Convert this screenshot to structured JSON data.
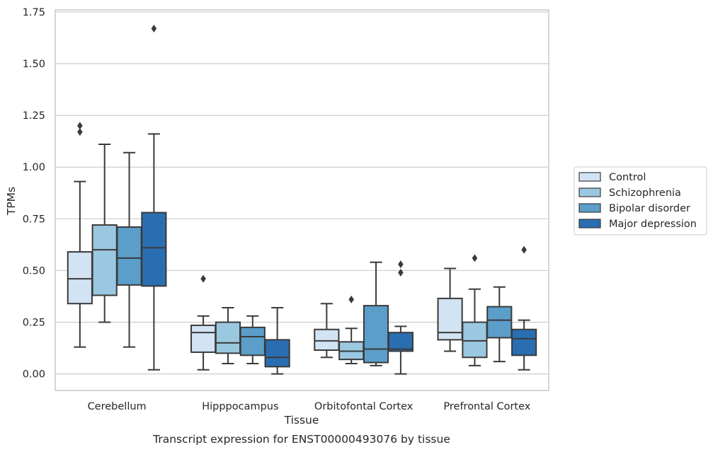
{
  "chart_data": {
    "type": "box",
    "title": "",
    "xlabel": "Tissue",
    "ylabel": "TPMs",
    "caption": "Transcript expression for ENST00000493076 by tissue",
    "categories": [
      "Cerebellum",
      "Hipppocampus",
      "Orbitofontal Cortex",
      "Prefrontal Cortex"
    ],
    "ylim": [
      -0.08,
      1.76
    ],
    "yticks": [
      0.0,
      0.25,
      0.5,
      0.75,
      1.0,
      1.25,
      1.5,
      1.75
    ],
    "ytick_labels": [
      "0.00",
      "0.25",
      "0.50",
      "0.75",
      "1.00",
      "1.25",
      "1.50",
      "1.75"
    ],
    "grid": true,
    "legend_position": "right",
    "series": [
      {
        "name": "Control",
        "color": "#d2e3f3",
        "boxes": [
          {
            "whisker_low": 0.13,
            "q1": 0.34,
            "median": 0.46,
            "q3": 0.59,
            "whisker_high": 0.93,
            "outliers": [
              1.17,
              1.2
            ]
          },
          {
            "whisker_low": 0.02,
            "q1": 0.105,
            "median": 0.2,
            "q3": 0.235,
            "whisker_high": 0.28,
            "outliers": [
              0.46
            ]
          },
          {
            "whisker_low": 0.08,
            "q1": 0.115,
            "median": 0.16,
            "q3": 0.215,
            "whisker_high": 0.34,
            "outliers": []
          },
          {
            "whisker_low": 0.11,
            "q1": 0.165,
            "median": 0.2,
            "q3": 0.365,
            "whisker_high": 0.51,
            "outliers": []
          }
        ]
      },
      {
        "name": "Schizophrenia",
        "color": "#9ac8e0",
        "boxes": [
          {
            "whisker_low": 0.25,
            "q1": 0.38,
            "median": 0.6,
            "q3": 0.72,
            "whisker_high": 1.11,
            "outliers": []
          },
          {
            "whisker_low": 0.05,
            "q1": 0.1,
            "median": 0.15,
            "q3": 0.25,
            "whisker_high": 0.32,
            "outliers": []
          },
          {
            "whisker_low": 0.05,
            "q1": 0.07,
            "median": 0.11,
            "q3": 0.155,
            "whisker_high": 0.22,
            "outliers": [
              0.36
            ]
          },
          {
            "whisker_low": 0.04,
            "q1": 0.08,
            "median": 0.16,
            "q3": 0.25,
            "whisker_high": 0.41,
            "outliers": [
              0.56
            ]
          }
        ]
      },
      {
        "name": "Bipolar disorder",
        "color": "#5a9ec9",
        "boxes": [
          {
            "whisker_low": 0.13,
            "q1": 0.43,
            "median": 0.56,
            "q3": 0.71,
            "whisker_high": 1.07,
            "outliers": []
          },
          {
            "whisker_low": 0.05,
            "q1": 0.09,
            "median": 0.18,
            "q3": 0.225,
            "whisker_high": 0.28,
            "outliers": []
          },
          {
            "whisker_low": 0.04,
            "q1": 0.055,
            "median": 0.12,
            "q3": 0.33,
            "whisker_high": 0.54,
            "outliers": []
          },
          {
            "whisker_low": 0.06,
            "q1": 0.175,
            "median": 0.26,
            "q3": 0.325,
            "whisker_high": 0.42,
            "outliers": []
          }
        ]
      },
      {
        "name": "Major depression",
        "color": "#2a6eb2",
        "boxes": [
          {
            "whisker_low": 0.02,
            "q1": 0.425,
            "median": 0.61,
            "q3": 0.78,
            "whisker_high": 1.16,
            "outliers": [
              1.67
            ]
          },
          {
            "whisker_low": 0.0,
            "q1": 0.035,
            "median": 0.08,
            "q3": 0.165,
            "whisker_high": 0.32,
            "outliers": []
          },
          {
            "whisker_low": 0.0,
            "q1": 0.11,
            "median": 0.12,
            "q3": 0.2,
            "whisker_high": 0.23,
            "outliers": [
              0.49,
              0.53
            ]
          },
          {
            "whisker_low": 0.02,
            "q1": 0.09,
            "median": 0.17,
            "q3": 0.215,
            "whisker_high": 0.26,
            "outliers": [
              0.6
            ]
          }
        ]
      }
    ]
  },
  "style": {
    "grid_color": "#cccccc",
    "frame_color": "#cccccc",
    "line_color": "#3a3a3a",
    "legend_border": "#cccccc"
  }
}
